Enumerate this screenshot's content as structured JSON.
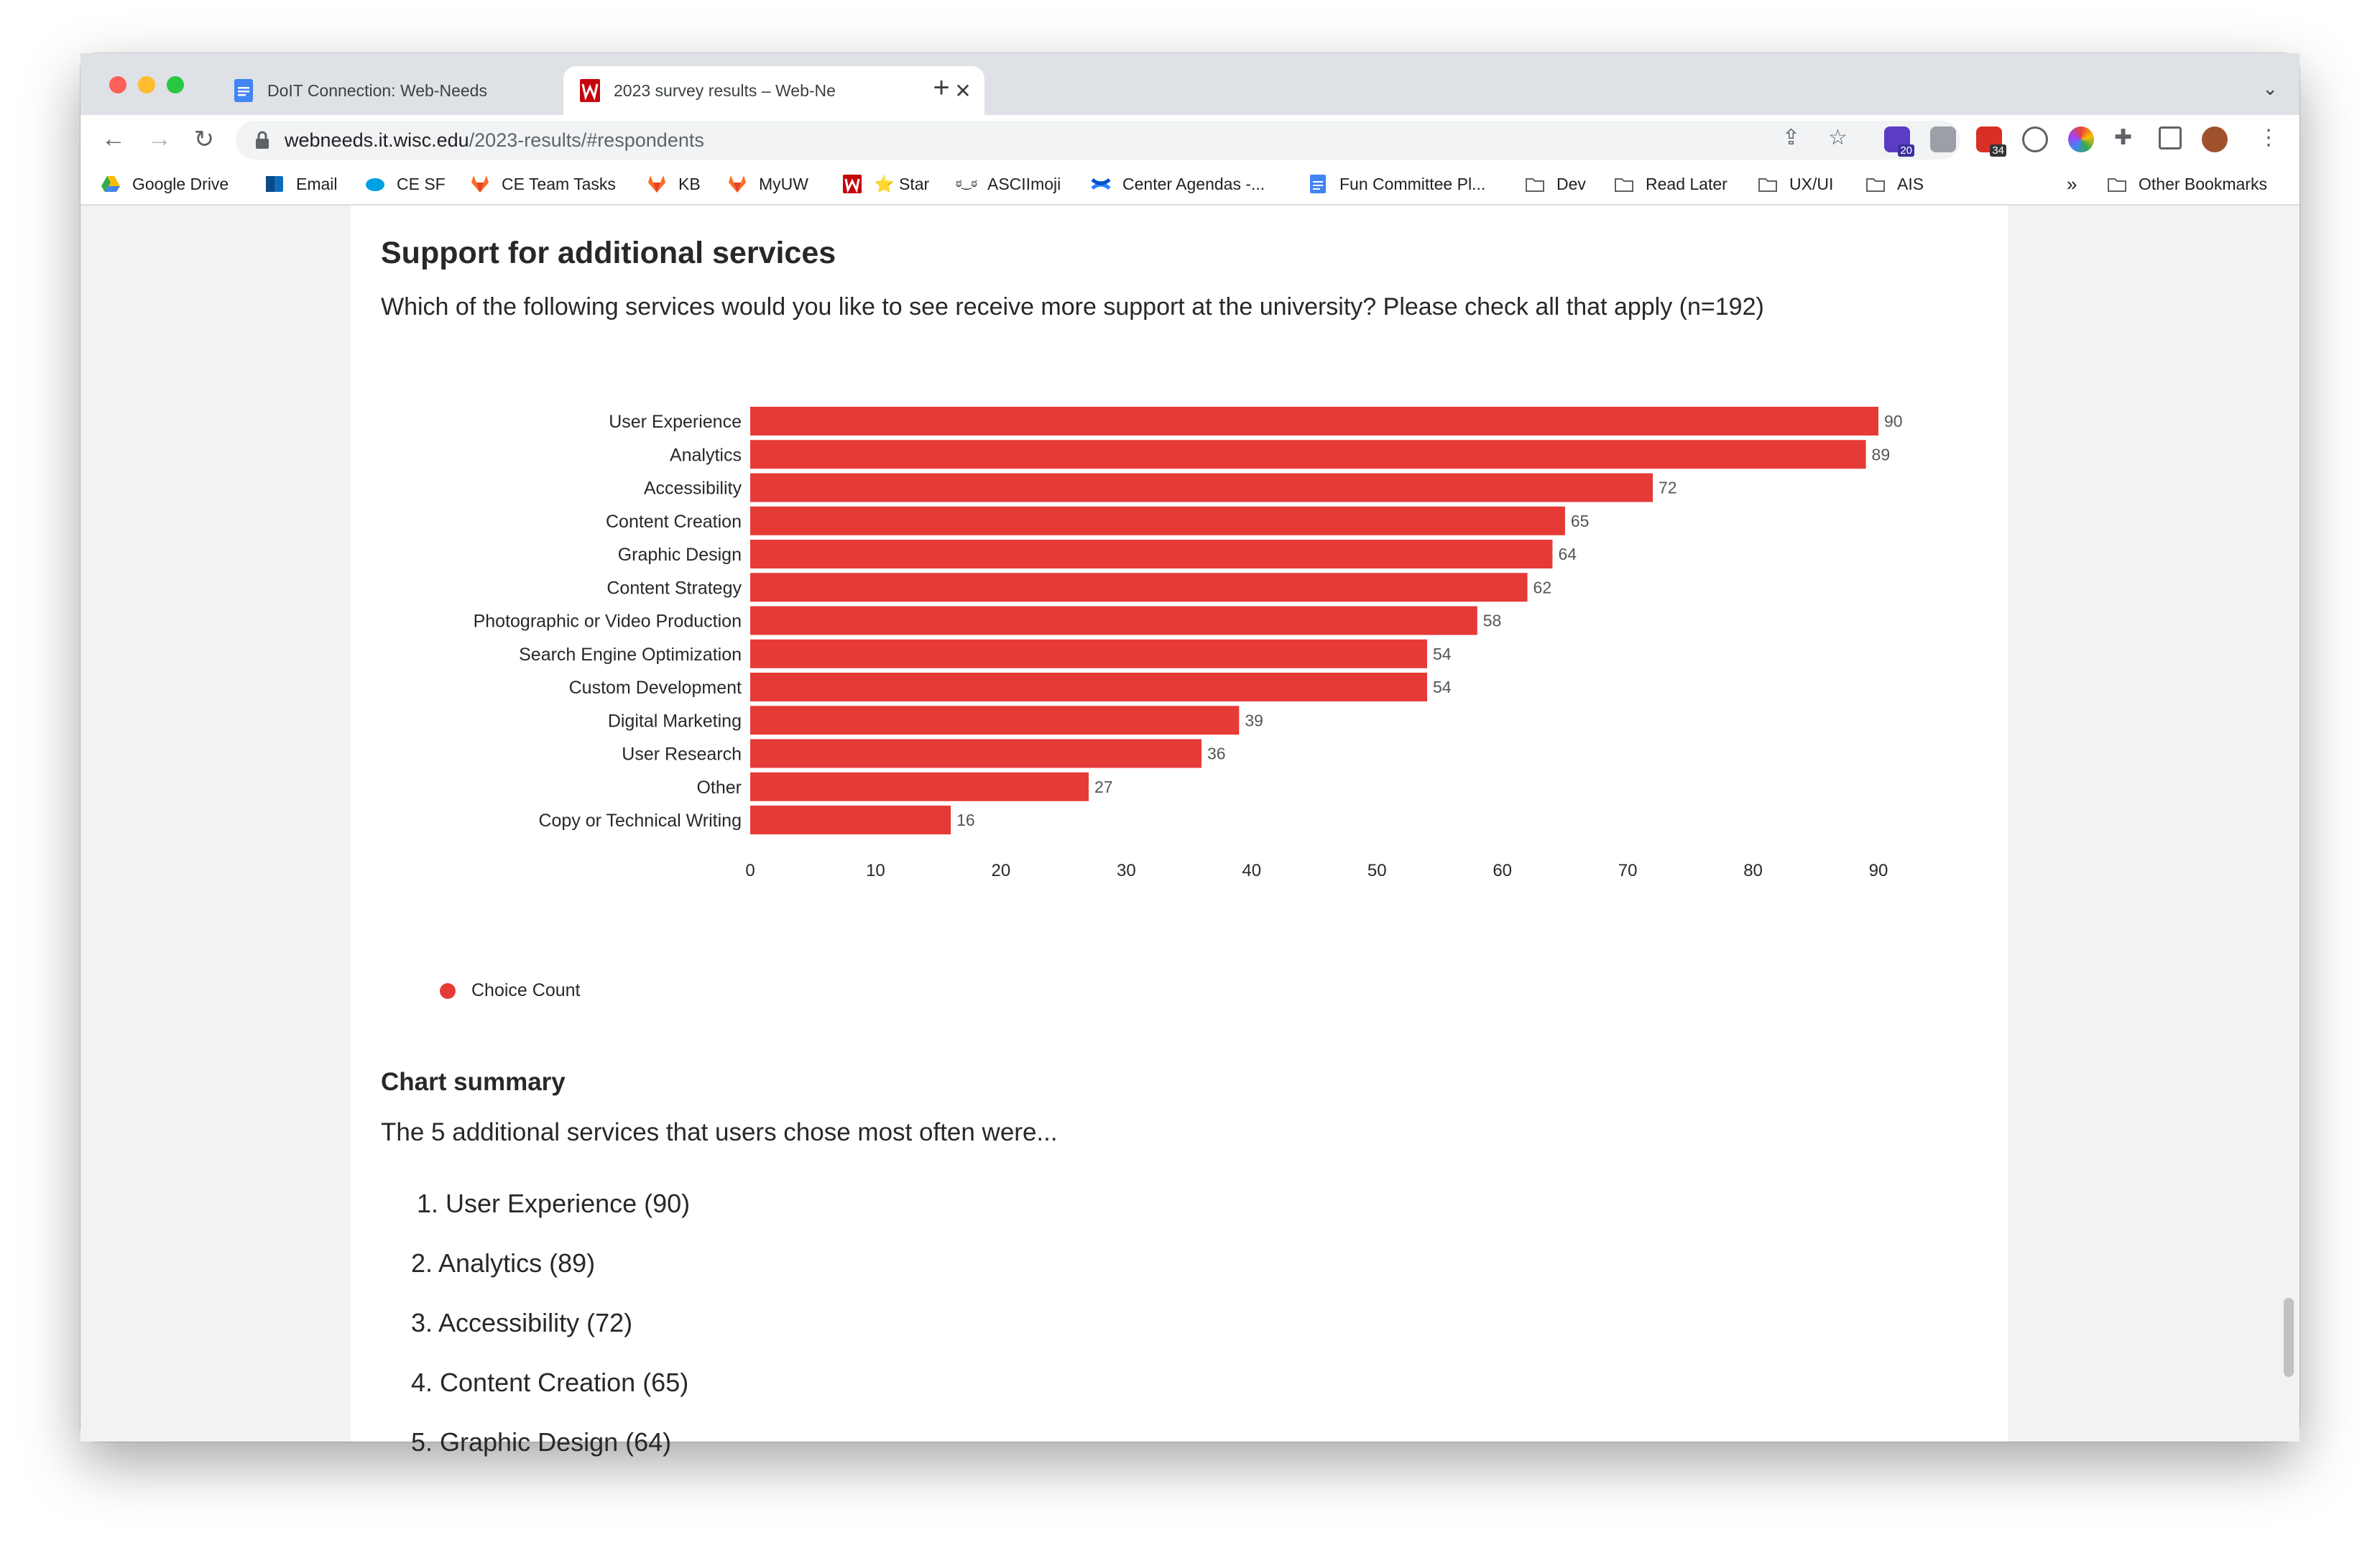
{
  "browser": {
    "tabs": [
      {
        "title": "DoIT Connection: Web-Needs",
        "active": false,
        "close": "✕"
      },
      {
        "title": "2023 survey results – Web-Ne",
        "active": true,
        "close": "✕"
      }
    ],
    "new_tab": "+",
    "tab_menu": "⌄",
    "url_host": "webneeds.it.wisc.edu",
    "url_path": "/2023-results/#respondents",
    "extension_badges": [
      "20",
      "34"
    ],
    "bookmarks": [
      {
        "label": "Google Drive",
        "icon": "google-drive-icon"
      },
      {
        "label": "Email",
        "icon": "outlook-icon"
      },
      {
        "label": "CE SF",
        "icon": "salesforce-icon"
      },
      {
        "label": "CE Team Tasks",
        "icon": "gitlab-icon"
      },
      {
        "label": "KB",
        "icon": "gitlab-icon"
      },
      {
        "label": "MyUW",
        "icon": "gitlab-icon"
      },
      {
        "label": "⭐ Star",
        "icon": "uw-logo-icon"
      },
      {
        "label": "ASCIImoji",
        "icon": "asciimoji-icon"
      },
      {
        "label": "Center Agendas -...",
        "icon": "confluence-icon"
      },
      {
        "label": "Fun Committee Pl...",
        "icon": "google-docs-icon"
      },
      {
        "label": "Dev",
        "icon": "folder-icon"
      },
      {
        "label": "Read Later",
        "icon": "folder-icon"
      },
      {
        "label": "UX/UI",
        "icon": "folder-icon"
      },
      {
        "label": "AIS",
        "icon": "folder-icon"
      }
    ],
    "bookmarks_overflow": "»",
    "other_bookmarks": "Other Bookmarks"
  },
  "page": {
    "section_title": "Support for additional services",
    "question": "Which of the following services would you like to see receive more support at the university? Please check all that apply (n=192)",
    "legend_label": "Choice Count",
    "summary_title": "Chart summary",
    "summary_text": "The 5 additional services that users chose most often were...",
    "summary_items": [
      "1. User Experience (90)",
      "2. Analytics (89)",
      "3. Accessibility (72)",
      "4. Content Creation (65)",
      "5. Graphic Design (64)"
    ]
  },
  "chart_data": {
    "type": "bar",
    "orientation": "horizontal",
    "categories": [
      "User Experience",
      "Analytics",
      "Accessibility",
      "Content Creation",
      "Graphic Design",
      "Content Strategy",
      "Photographic or Video Production",
      "Search Engine Optimization",
      "Custom Development",
      "Digital Marketing",
      "User Research",
      "Other",
      "Copy or Technical Writing"
    ],
    "series": [
      {
        "name": "Choice Count",
        "values": [
          90,
          89,
          72,
          65,
          64,
          62,
          58,
          54,
          54,
          39,
          36,
          27,
          16
        ],
        "color": "#e63a37"
      }
    ],
    "xlim": [
      0,
      90
    ],
    "xticks": [
      0,
      10,
      20,
      30,
      40,
      50,
      60,
      70,
      80,
      90
    ],
    "data_labels": true,
    "grid": false,
    "legend": "bottom-left"
  }
}
